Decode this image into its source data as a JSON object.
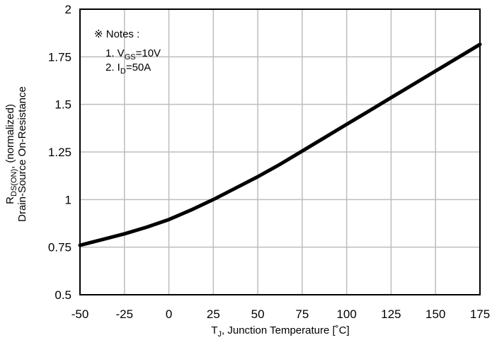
{
  "chart_data": {
    "type": "line",
    "xlabel": {
      "main": "T",
      "sub": "J",
      "rest": ", Junction Temperature [˚C]"
    },
    "ylabel": {
      "line1_main": "R",
      "line1_sub": "DS(ON)",
      "line1_rest": ", (normalized)",
      "line2": "Drain-Source On-Resistance"
    },
    "xlim": [
      -50,
      175
    ],
    "ylim": [
      0.5,
      2
    ],
    "xticks": [
      "-50",
      "-25",
      "0",
      "25",
      "50",
      "75",
      "100",
      "125",
      "150",
      "175"
    ],
    "yticks": [
      "0.5",
      "0.75",
      "1",
      "1.25",
      "1.5",
      "1.75",
      "2"
    ],
    "grid": true,
    "notes": {
      "title": "※ Notes :",
      "items": [
        {
          "prefix": "1. V",
          "sub": "GS",
          "rest": "=10V"
        },
        {
          "prefix": "2. I",
          "sub": "D",
          "rest": "=50A"
        }
      ]
    },
    "series": [
      {
        "x": [
          -50,
          -37.5,
          -25,
          -12.5,
          0,
          12.5,
          25,
          37.5,
          50,
          62.5,
          75,
          87.5,
          100,
          112.5,
          125,
          137.5,
          150,
          162.5,
          175
        ],
        "y": [
          0.76,
          0.79,
          0.82,
          0.855,
          0.895,
          0.945,
          1.0,
          1.06,
          1.12,
          1.185,
          1.255,
          1.325,
          1.395,
          1.465,
          1.535,
          1.605,
          1.675,
          1.745,
          1.815
        ]
      }
    ]
  }
}
